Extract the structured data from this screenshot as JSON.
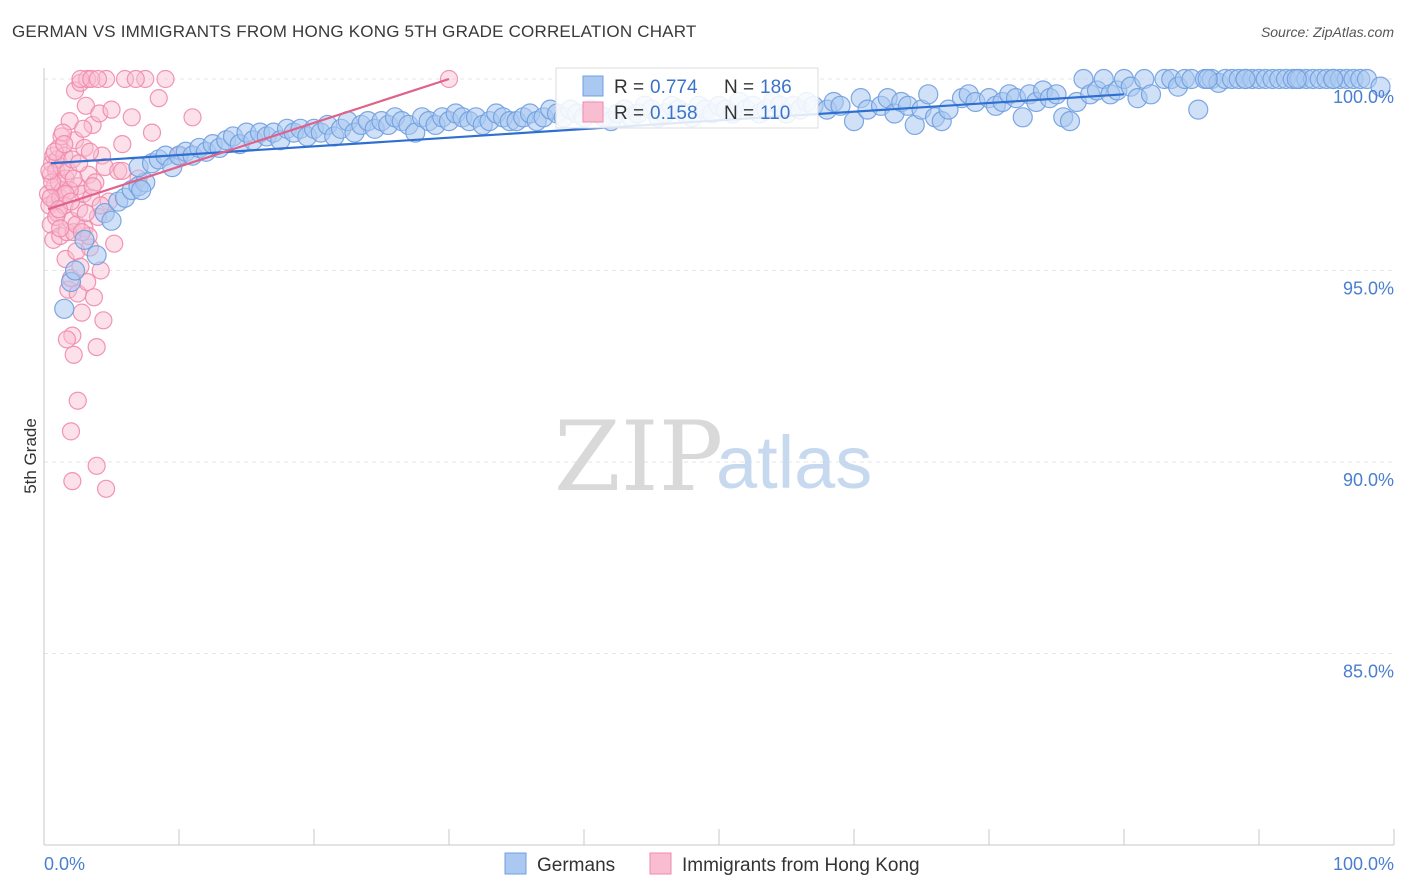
{
  "title": "GERMAN VS IMMIGRANTS FROM HONG KONG 5TH GRADE CORRELATION CHART",
  "source": "Source: ZipAtlas.com",
  "watermark": {
    "zip": "ZIP",
    "atlas": "atlas"
  },
  "colors": {
    "blue": "#6f9fe0",
    "blue_line": "#2f6fd0",
    "pink": "#f08aab",
    "pink_line": "#e0628a",
    "tick": "#4a7ed0"
  },
  "legend": {
    "row1": {
      "r_label": "R =",
      "r_value": "0.774",
      "n_label": "N =",
      "n_value": "186"
    },
    "row2": {
      "r_label": "R =",
      "r_value": "0.158",
      "n_label": "N =",
      "n_value": "110"
    }
  },
  "bottom_legend": {
    "germans": "Germans",
    "hk": "Immigrants from Hong Kong"
  },
  "chart_data": {
    "type": "scatter",
    "xlabel": "",
    "ylabel": "5th Grade",
    "xlim": [
      0,
      100
    ],
    "ylim": [
      80.5,
      100.8
    ],
    "x_tick_labels": [
      "0.0%",
      "100.0%"
    ],
    "y_ticks": [
      {
        "value": 100.0,
        "label": "100.0%"
      },
      {
        "value": 95.0,
        "label": "95.0%"
      },
      {
        "value": 90.0,
        "label": "90.0%"
      },
      {
        "value": 85.0,
        "label": "85.0%"
      }
    ],
    "series": [
      {
        "name": "Germans",
        "r": 0.774,
        "n": 186,
        "trend": {
          "x": [
            0.5,
            80.0
          ],
          "y": [
            97.8,
            99.6
          ]
        },
        "points": [
          [
            1.5,
            94.0
          ],
          [
            2.0,
            94.7
          ],
          [
            2.3,
            95.0
          ],
          [
            3.0,
            95.8
          ],
          [
            3.9,
            95.4
          ],
          [
            4.5,
            96.5
          ],
          [
            5.0,
            96.3
          ],
          [
            5.5,
            96.8
          ],
          [
            6.0,
            96.9
          ],
          [
            6.5,
            97.1
          ],
          [
            7.0,
            97.2
          ],
          [
            7.5,
            97.3
          ],
          [
            7.2,
            97.1
          ],
          [
            7.0,
            97.7
          ],
          [
            8.0,
            97.8
          ],
          [
            8.5,
            97.9
          ],
          [
            9.0,
            98.0
          ],
          [
            9.5,
            97.7
          ],
          [
            10.0,
            98.0
          ],
          [
            10.5,
            98.1
          ],
          [
            11.0,
            98.0
          ],
          [
            11.5,
            98.2
          ],
          [
            12.0,
            98.1
          ],
          [
            12.5,
            98.3
          ],
          [
            13.0,
            98.2
          ],
          [
            13.5,
            98.4
          ],
          [
            14.0,
            98.5
          ],
          [
            14.5,
            98.3
          ],
          [
            15.0,
            98.6
          ],
          [
            15.5,
            98.4
          ],
          [
            16.0,
            98.6
          ],
          [
            16.5,
            98.5
          ],
          [
            17.0,
            98.6
          ],
          [
            17.5,
            98.4
          ],
          [
            18.0,
            98.7
          ],
          [
            18.5,
            98.6
          ],
          [
            19.0,
            98.7
          ],
          [
            19.5,
            98.5
          ],
          [
            20.0,
            98.7
          ],
          [
            20.5,
            98.6
          ],
          [
            21.0,
            98.8
          ],
          [
            21.5,
            98.5
          ],
          [
            22.0,
            98.7
          ],
          [
            22.5,
            98.9
          ],
          [
            23.0,
            98.6
          ],
          [
            23.5,
            98.8
          ],
          [
            24.0,
            98.9
          ],
          [
            24.5,
            98.7
          ],
          [
            25.0,
            98.9
          ],
          [
            25.5,
            98.8
          ],
          [
            26.0,
            99.0
          ],
          [
            26.5,
            98.9
          ],
          [
            27.0,
            98.8
          ],
          [
            27.5,
            98.6
          ],
          [
            28.0,
            99.0
          ],
          [
            28.5,
            98.9
          ],
          [
            29.0,
            98.8
          ],
          [
            29.5,
            99.0
          ],
          [
            30.0,
            98.9
          ],
          [
            30.5,
            99.1
          ],
          [
            31.0,
            99.0
          ],
          [
            31.5,
            98.9
          ],
          [
            32.0,
            99.0
          ],
          [
            32.5,
            98.8
          ],
          [
            33.0,
            98.9
          ],
          [
            33.5,
            99.1
          ],
          [
            34.0,
            99.0
          ],
          [
            34.5,
            98.9
          ],
          [
            35.0,
            98.9
          ],
          [
            35.5,
            99.0
          ],
          [
            36.0,
            99.1
          ],
          [
            36.5,
            98.9
          ],
          [
            37.0,
            99.0
          ],
          [
            37.5,
            99.2
          ],
          [
            38.0,
            99.1
          ],
          [
            38.5,
            99.0
          ],
          [
            39.0,
            99.2
          ],
          [
            39.5,
            99.1
          ],
          [
            40.0,
            99.0
          ],
          [
            40.5,
            99.2
          ],
          [
            41.0,
            99.1
          ],
          [
            41.5,
            99.0
          ],
          [
            42.0,
            98.9
          ],
          [
            42.5,
            99.1
          ],
          [
            43.0,
            99.2
          ],
          [
            43.5,
            99.0
          ],
          [
            44.0,
            99.1
          ],
          [
            44.5,
            99.3
          ],
          [
            45.0,
            99.2
          ],
          [
            45.5,
            99.0
          ],
          [
            46.0,
            99.1
          ],
          [
            46.5,
            99.3
          ],
          [
            47.0,
            99.2
          ],
          [
            47.5,
            99.1
          ],
          [
            48.0,
            99.0
          ],
          [
            48.5,
            99.3
          ],
          [
            49.0,
            99.2
          ],
          [
            49.5,
            99.1
          ],
          [
            50.0,
            99.3
          ],
          [
            50.5,
            99.2
          ],
          [
            51.0,
            99.1
          ],
          [
            51.5,
            99.4
          ],
          [
            52.0,
            99.2
          ],
          [
            52.5,
            99.3
          ],
          [
            53.0,
            99.1
          ],
          [
            53.5,
            99.2
          ],
          [
            54.0,
            99.4
          ],
          [
            54.5,
            99.3
          ],
          [
            55.0,
            99.1
          ],
          [
            55.5,
            99.3
          ],
          [
            56.0,
            99.2
          ],
          [
            56.5,
            99.4
          ],
          [
            57.0,
            99.3
          ],
          [
            58.0,
            99.2
          ],
          [
            58.5,
            99.4
          ],
          [
            59.0,
            99.3
          ],
          [
            60.0,
            98.9
          ],
          [
            60.5,
            99.5
          ],
          [
            61.0,
            99.2
          ],
          [
            62.0,
            99.3
          ],
          [
            62.5,
            99.5
          ],
          [
            63.0,
            99.1
          ],
          [
            63.5,
            99.4
          ],
          [
            64.0,
            99.3
          ],
          [
            64.5,
            98.8
          ],
          [
            65.0,
            99.2
          ],
          [
            65.5,
            99.6
          ],
          [
            66.0,
            99.0
          ],
          [
            66.5,
            98.9
          ],
          [
            67.0,
            99.2
          ],
          [
            68.0,
            99.5
          ],
          [
            68.5,
            99.6
          ],
          [
            69.0,
            99.4
          ],
          [
            70.0,
            99.5
          ],
          [
            70.5,
            99.3
          ],
          [
            71.0,
            99.4
          ],
          [
            71.5,
            99.6
          ],
          [
            72.0,
            99.5
          ],
          [
            72.5,
            99.0
          ],
          [
            73.0,
            99.6
          ],
          [
            73.5,
            99.4
          ],
          [
            74.0,
            99.7
          ],
          [
            74.5,
            99.5
          ],
          [
            75.0,
            99.6
          ],
          [
            75.5,
            99.0
          ],
          [
            76.0,
            98.9
          ],
          [
            76.5,
            99.4
          ],
          [
            77.0,
            100.0
          ],
          [
            77.5,
            99.6
          ],
          [
            78.0,
            99.7
          ],
          [
            78.5,
            100.0
          ],
          [
            79.0,
            99.6
          ],
          [
            79.5,
            99.7
          ],
          [
            80.0,
            100.0
          ],
          [
            80.5,
            99.8
          ],
          [
            81.0,
            99.5
          ],
          [
            81.5,
            100.0
          ],
          [
            82.0,
            99.6
          ],
          [
            83.0,
            100.0
          ],
          [
            83.5,
            100.0
          ],
          [
            84.0,
            99.8
          ],
          [
            84.5,
            100.0
          ],
          [
            85.0,
            100.0
          ],
          [
            85.5,
            99.2
          ],
          [
            86.0,
            100.0
          ],
          [
            86.5,
            100.0
          ],
          [
            87.0,
            99.9
          ],
          [
            87.5,
            100.0
          ],
          [
            88.0,
            100.0
          ],
          [
            88.5,
            100.0
          ],
          [
            89.0,
            100.0
          ],
          [
            89.5,
            100.0
          ],
          [
            90.0,
            100.0
          ],
          [
            90.5,
            100.0
          ],
          [
            91.0,
            100.0
          ],
          [
            91.5,
            100.0
          ],
          [
            92.0,
            100.0
          ],
          [
            92.5,
            100.0
          ],
          [
            93.0,
            100.0
          ],
          [
            93.5,
            100.0
          ],
          [
            94.0,
            100.0
          ],
          [
            94.5,
            100.0
          ],
          [
            95.0,
            100.0
          ],
          [
            95.5,
            100.0
          ],
          [
            96.0,
            100.0
          ],
          [
            96.5,
            100.0
          ],
          [
            97.0,
            100.0
          ],
          [
            97.5,
            100.0
          ],
          [
            98.0,
            100.0
          ],
          [
            99.0,
            99.8
          ],
          [
            95.5,
            100.0
          ],
          [
            92.8,
            100.0
          ],
          [
            89.0,
            100.0
          ],
          [
            86.2,
            100.0
          ]
        ]
      },
      {
        "name": "Immigrants from Hong Kong",
        "r": 0.158,
        "n": 110,
        "trend": {
          "x": [
            0.3,
            30.0
          ],
          "y": [
            96.6,
            100.0
          ]
        },
        "points": [
          [
            0.3,
            97.0
          ],
          [
            0.4,
            96.7
          ],
          [
            0.5,
            97.5
          ],
          [
            0.5,
            96.2
          ],
          [
            0.6,
            97.8
          ],
          [
            0.7,
            95.8
          ],
          [
            0.7,
            98.0
          ],
          [
            0.8,
            97.2
          ],
          [
            0.8,
            96.8
          ],
          [
            0.9,
            97.6
          ],
          [
            1.0,
            97.9
          ],
          [
            1.0,
            96.5
          ],
          [
            1.1,
            98.2
          ],
          [
            1.1,
            97.3
          ],
          [
            1.2,
            96.9
          ],
          [
            1.2,
            95.9
          ],
          [
            1.3,
            97.7
          ],
          [
            1.3,
            98.5
          ],
          [
            1.4,
            97.1
          ],
          [
            1.5,
            96.7
          ],
          [
            1.5,
            98.0
          ],
          [
            1.6,
            97.4
          ],
          [
            1.6,
            95.3
          ],
          [
            1.7,
            96.0
          ],
          [
            1.8,
            94.5
          ],
          [
            1.8,
            97.6
          ],
          [
            1.9,
            98.9
          ],
          [
            2.0,
            96.3
          ],
          [
            2.0,
            94.8
          ],
          [
            2.1,
            97.9
          ],
          [
            2.1,
            93.3
          ],
          [
            2.2,
            96.0
          ],
          [
            2.3,
            98.4
          ],
          [
            2.3,
            99.7
          ],
          [
            2.4,
            95.5
          ],
          [
            2.5,
            97.2
          ],
          [
            2.5,
            94.4
          ],
          [
            2.6,
            96.6
          ],
          [
            2.7,
            99.9
          ],
          [
            2.7,
            95.1
          ],
          [
            2.8,
            93.9
          ],
          [
            2.9,
            97.0
          ],
          [
            3.0,
            98.2
          ],
          [
            3.0,
            96.1
          ],
          [
            3.1,
            99.3
          ],
          [
            3.2,
            94.7
          ],
          [
            3.3,
            97.5
          ],
          [
            3.4,
            95.6
          ],
          [
            3.5,
            96.9
          ],
          [
            3.6,
            98.8
          ],
          [
            3.7,
            94.3
          ],
          [
            3.8,
            97.3
          ],
          [
            3.9,
            93.0
          ],
          [
            4.0,
            96.4
          ],
          [
            4.1,
            99.1
          ],
          [
            4.2,
            95.0
          ],
          [
            4.3,
            98.0
          ],
          [
            4.4,
            93.7
          ],
          [
            4.5,
            97.7
          ],
          [
            4.6,
            100.0
          ],
          [
            4.8,
            96.8
          ],
          [
            5.0,
            99.2
          ],
          [
            5.2,
            95.7
          ],
          [
            5.5,
            97.6
          ],
          [
            5.8,
            98.3
          ],
          [
            6.0,
            100.0
          ],
          [
            6.5,
            99.0
          ],
          [
            7.0,
            97.4
          ],
          [
            7.5,
            100.0
          ],
          [
            8.0,
            98.6
          ],
          [
            8.5,
            99.5
          ],
          [
            9.0,
            100.0
          ],
          [
            10.0,
            98.0
          ],
          [
            11.0,
            99.0
          ],
          [
            2.5,
            91.6
          ],
          [
            2.0,
            90.8
          ],
          [
            3.9,
            89.9
          ],
          [
            2.1,
            89.5
          ],
          [
            4.6,
            89.3
          ],
          [
            1.7,
            93.2
          ],
          [
            2.2,
            92.8
          ],
          [
            3.2,
            100.0
          ],
          [
            2.7,
            100.0
          ],
          [
            3.5,
            100.0
          ],
          [
            4.0,
            100.0
          ],
          [
            6.8,
            100.0
          ],
          [
            0.6,
            97.3
          ],
          [
            0.9,
            96.4
          ],
          [
            1.4,
            98.6
          ],
          [
            1.9,
            97.1
          ],
          [
            2.4,
            96.2
          ],
          [
            2.9,
            98.7
          ],
          [
            3.3,
            95.9
          ],
          [
            0.4,
            97.6
          ],
          [
            0.8,
            98.1
          ],
          [
            1.2,
            96.1
          ],
          [
            1.6,
            97.0
          ],
          [
            2.0,
            96.8
          ],
          [
            2.6,
            97.8
          ],
          [
            3.1,
            96.5
          ],
          [
            3.6,
            97.2
          ],
          [
            0.5,
            96.9
          ],
          [
            1.1,
            96.6
          ],
          [
            1.5,
            98.3
          ],
          [
            2.2,
            97.4
          ],
          [
            2.8,
            96.0
          ],
          [
            3.4,
            98.1
          ],
          [
            4.2,
            96.7
          ],
          [
            30.0,
            100.0
          ],
          [
            5.8,
            97.6
          ]
        ]
      }
    ]
  }
}
